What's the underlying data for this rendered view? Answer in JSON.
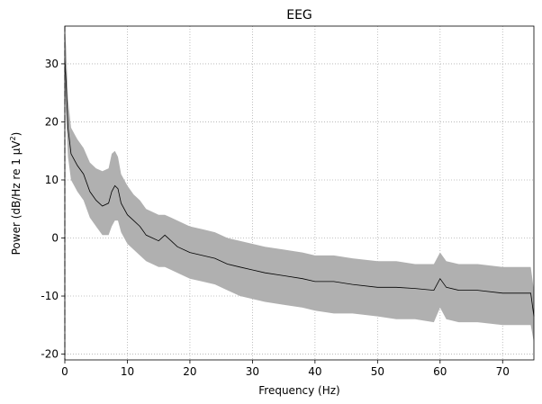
{
  "chart_data": {
    "type": "area",
    "title": "EEG",
    "xlabel": "Frequency (Hz)",
    "ylabel_main": "Power (dB/Hz re 1 μV",
    "ylabel_sup": "2",
    "ylabel_close": ")",
    "xlim": [
      0,
      75
    ],
    "ylim": [
      -21,
      36.5
    ],
    "x_ticks": [
      0,
      10,
      20,
      30,
      40,
      50,
      60,
      70
    ],
    "y_ticks": [
      -20,
      -10,
      0,
      10,
      20,
      30
    ],
    "grid": true,
    "vline_x": 0,
    "series": [
      {
        "style": "mean-line",
        "color": "#000000",
        "x": [
          0,
          0.2,
          0.5,
          1,
          1.5,
          2,
          3,
          4,
          5,
          6,
          7,
          7.5,
          8,
          8.5,
          9,
          10,
          11,
          12,
          13,
          14,
          15,
          16,
          17,
          18,
          20,
          22,
          24,
          26,
          28,
          30,
          32,
          35,
          38,
          40,
          43,
          46,
          50,
          53,
          56,
          59,
          60,
          61,
          63,
          66,
          70,
          73,
          74.5,
          75
        ],
        "y": [
          31,
          27,
          19,
          14.5,
          13.5,
          12.5,
          11,
          8,
          6.5,
          5.5,
          6,
          8,
          9,
          8.5,
          6,
          4,
          3,
          2,
          0.5,
          0,
          -0.5,
          0.5,
          -0.5,
          -1.5,
          -2.5,
          -3,
          -3.5,
          -4.5,
          -5,
          -5.5,
          -6,
          -6.5,
          -7,
          -7.5,
          -7.5,
          -8,
          -8.5,
          -8.5,
          -8.7,
          -9,
          -7,
          -8.5,
          -9,
          -9,
          -9.5,
          -9.5,
          -9.5,
          -13.5
        ]
      },
      {
        "style": "std-band",
        "color": "#b0b0b0",
        "x": [
          0,
          0.2,
          0.5,
          1,
          1.5,
          2,
          3,
          4,
          5,
          6,
          7,
          7.5,
          8,
          8.5,
          9,
          10,
          11,
          12,
          13,
          14,
          15,
          16,
          17,
          18,
          20,
          22,
          24,
          26,
          28,
          30,
          32,
          35,
          38,
          40,
          43,
          46,
          50,
          53,
          56,
          59,
          60,
          61,
          63,
          66,
          70,
          73,
          74.5,
          75
        ],
        "upper": [
          36,
          33,
          24,
          19,
          18,
          17,
          15.5,
          13,
          12,
          11.5,
          12,
          14.5,
          15,
          14,
          11,
          9,
          7.5,
          6.5,
          5,
          4.5,
          4,
          4,
          3.5,
          3,
          2,
          1.5,
          1,
          0,
          -0.5,
          -1,
          -1.5,
          -2,
          -2.5,
          -3,
          -3,
          -3.5,
          -4,
          -4,
          -4.5,
          -4.5,
          -2.5,
          -4,
          -4.5,
          -4.5,
          -5,
          -5,
          -5,
          -9
        ],
        "lower": [
          26,
          21,
          14,
          10,
          9,
          8,
          6.5,
          3.5,
          2,
          0.5,
          0.5,
          2,
          3,
          3,
          1,
          -1,
          -2,
          -3,
          -4,
          -4.5,
          -5,
          -5,
          -5.5,
          -6,
          -7,
          -7.5,
          -8,
          -9,
          -10,
          -10.5,
          -11,
          -11.5,
          -12,
          -12.5,
          -13,
          -13,
          -13.5,
          -14,
          -14,
          -14.5,
          -12,
          -14,
          -14.5,
          -14.5,
          -15,
          -15,
          -15,
          -18
        ]
      }
    ]
  }
}
